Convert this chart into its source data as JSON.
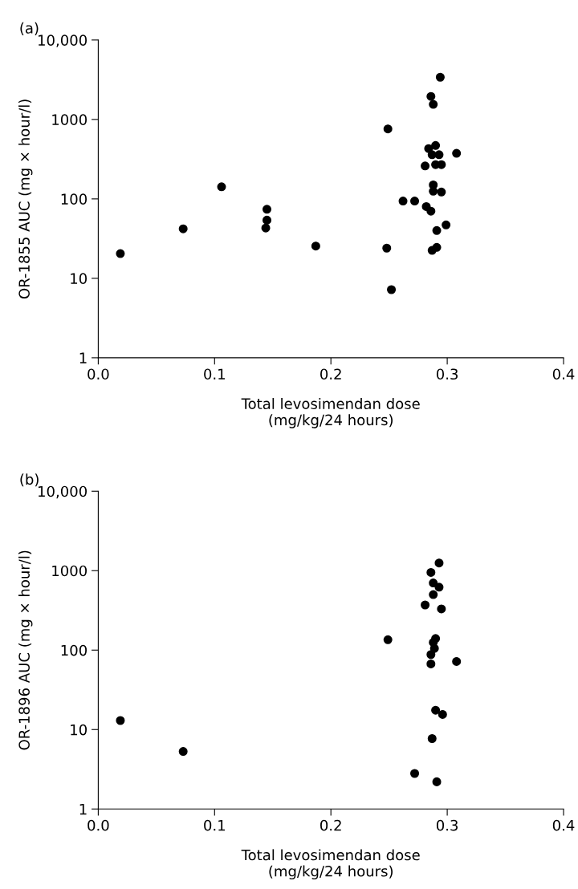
{
  "chart_data": [
    {
      "type": "scatter",
      "title": "(a)",
      "xlabel": "Total levosimendan dose\n(mg/kg/24 hours)",
      "ylabel": "OR-1855 AUC (mg × hour/l)",
      "log": "y",
      "grid": false,
      "marker": "circle",
      "xlim": [
        0,
        0.4
      ],
      "xticks": [
        {
          "value": 0,
          "label": "0.0"
        },
        0.1,
        0.2,
        0.3,
        0.4
      ],
      "ylim": [
        1,
        10000
      ],
      "yticks": [
        1,
        10,
        100,
        1000,
        {
          "value": 10000,
          "label": "10,000"
        }
      ],
      "series": [
        {
          "color": "#000000",
          "x": [
            0.019,
            0.073,
            0.106,
            0.145,
            0.145,
            0.144,
            0.187,
            0.248,
            0.249,
            0.252,
            0.262,
            0.272,
            0.281,
            0.282,
            0.286,
            0.288,
            0.294,
            0.284,
            0.29,
            0.287,
            0.29,
            0.293,
            0.295,
            0.288,
            0.288,
            0.295,
            0.286,
            0.291,
            0.299,
            0.291,
            0.287,
            0.308
          ],
          "values": [
            20.5,
            42,
            142,
            74,
            54,
            43,
            25.5,
            24,
            760,
            7.2,
            94,
            94,
            260,
            80,
            1950,
            1550,
            3400,
            430,
            470,
            360,
            270,
            360,
            270,
            150,
            125,
            122,
            70,
            40,
            47,
            24.5,
            22.5,
            375
          ]
        }
      ]
    },
    {
      "type": "scatter",
      "title": "(b)",
      "xlabel": "Total levosimendan dose\n(mg/kg/24 hours)",
      "ylabel": "OR-1896 AUC (mg × hour/l)",
      "log": "y",
      "grid": false,
      "marker": "circle",
      "xlim": [
        0,
        0.4
      ],
      "xticks": [
        {
          "value": 0,
          "label": "0.0"
        },
        0.1,
        0.2,
        0.3,
        0.4
      ],
      "ylim": [
        1,
        10000
      ],
      "yticks": [
        1,
        10,
        100,
        1000,
        {
          "value": 10000,
          "label": "10,000"
        }
      ],
      "series": [
        {
          "color": "#000000",
          "x": [
            0.019,
            0.073,
            0.249,
            0.272,
            0.281,
            0.286,
            0.293,
            0.288,
            0.293,
            0.288,
            0.295,
            0.29,
            0.288,
            0.289,
            0.286,
            0.286,
            0.308,
            0.29,
            0.296,
            0.287,
            0.291
          ],
          "values": [
            13,
            5.3,
            135,
            2.8,
            370,
            950,
            1250,
            700,
            620,
            500,
            330,
            140,
            125,
            105,
            88,
            67,
            72,
            17.5,
            15.5,
            7.7,
            2.2
          ]
        }
      ]
    }
  ]
}
